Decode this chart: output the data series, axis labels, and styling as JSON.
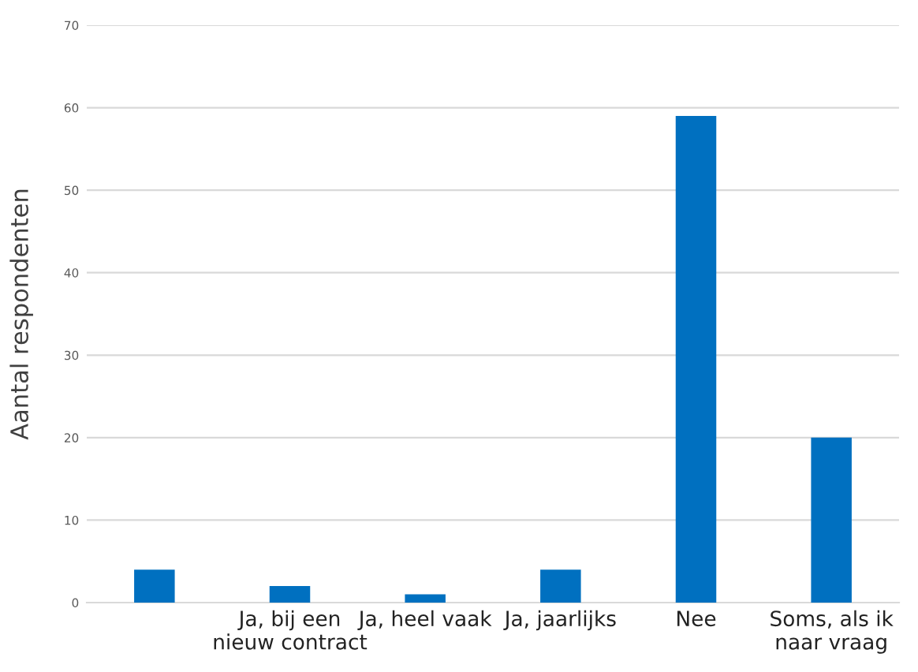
{
  "chart_data": {
    "type": "bar",
    "ylabel": "Aantal respondenten",
    "categories": [
      null,
      "Ja, bij een\nnieuw contract",
      "Ja, heel vaak",
      "Ja, jaarlijks",
      "Nee",
      "Soms, als ik\nnaar vraag"
    ],
    "values": [
      4,
      2,
      1,
      4,
      59,
      20
    ],
    "color": "#0070c0",
    "ylim": [
      0,
      70
    ],
    "yticks": [
      0,
      10,
      20,
      30,
      40,
      50,
      60,
      70
    ],
    "grid": "y",
    "legend": false
  }
}
